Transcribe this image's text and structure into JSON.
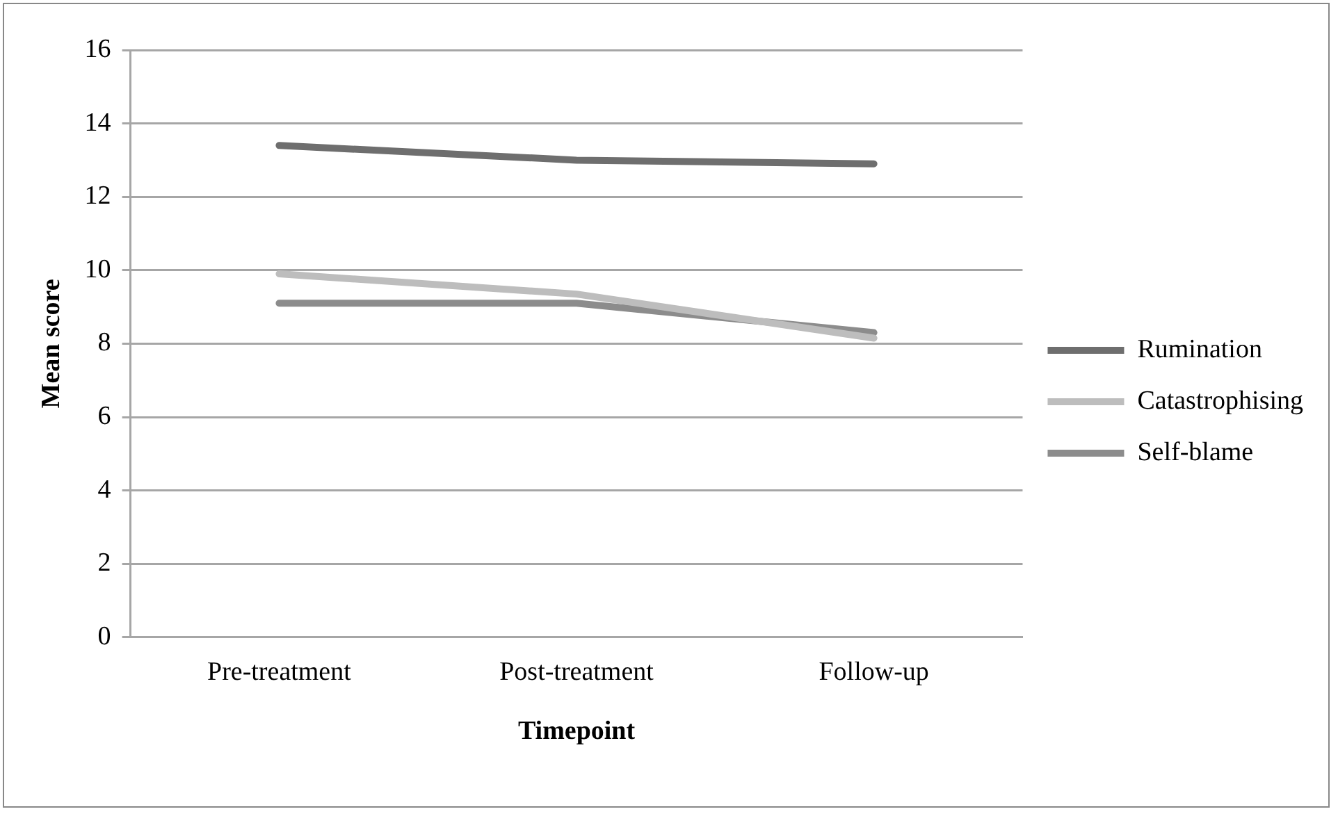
{
  "chart_data": {
    "type": "line",
    "xlabel": "Timepoint",
    "ylabel": "Mean score",
    "categories": [
      "Pre-treatment",
      "Post-treatment",
      "Follow-up"
    ],
    "series": [
      {
        "name": "Rumination",
        "color": "#6e6e6e",
        "values": [
          13.4,
          13.0,
          12.9
        ]
      },
      {
        "name": "Catastrophising",
        "color": "#bdbdbd",
        "values": [
          9.9,
          9.35,
          8.15
        ]
      },
      {
        "name": "Self-blame",
        "color": "#8c8c8c",
        "values": [
          9.1,
          9.1,
          8.3
        ]
      }
    ],
    "ylim": [
      0,
      16
    ],
    "yticks": [
      0,
      2,
      4,
      6,
      8,
      10,
      12,
      14,
      16
    ],
    "grid": "y",
    "legend": "right",
    "marker": "none",
    "line_style": "solid"
  }
}
